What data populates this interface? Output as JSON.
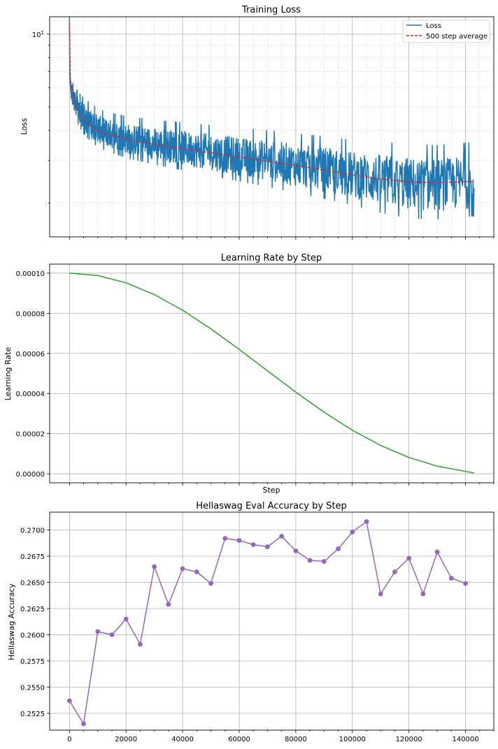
{
  "chart_data": [
    {
      "type": "line",
      "title": "Training Loss",
      "xlabel": "",
      "ylabel": "Loss",
      "yscale": "log",
      "ylim": [
        1.45,
        11.8
      ],
      "xlim": [
        -7000,
        150000
      ],
      "grid": "major and minor",
      "legend_position": "top-right",
      "y_ticklabels": [
        {
          "value": 10,
          "label": "10",
          "sup": "1"
        }
      ],
      "series": [
        {
          "name": "Loss",
          "color": "#1f77b4",
          "style": "solid",
          "noisy": true,
          "x": [
            0,
            100,
            300,
            600,
            1000,
            2000,
            3000,
            5000,
            8000,
            12000,
            20000,
            30000,
            40000,
            50000,
            60000,
            70000,
            80000,
            90000,
            100000,
            110000,
            120000,
            130000,
            143000
          ],
          "y": [
            11.5,
            6.9,
            6.3,
            5.9,
            5.6,
            5.2,
            4.9,
            4.55,
            4.2,
            3.95,
            3.7,
            3.52,
            3.38,
            3.25,
            3.12,
            3.0,
            2.87,
            2.75,
            2.62,
            2.5,
            2.4,
            2.38,
            2.45
          ],
          "band_halfwidth_ln": [
            0.05,
            0.05,
            0.05,
            0.06,
            0.08,
            0.1,
            0.11,
            0.12,
            0.13,
            0.13,
            0.14,
            0.15,
            0.16,
            0.17,
            0.18,
            0.19,
            0.2,
            0.21,
            0.22,
            0.24,
            0.25,
            0.25,
            0.25
          ]
        },
        {
          "name": "500 step average",
          "color": "#d62728",
          "style": "dashed",
          "x": [
            0,
            300,
            600,
            1000,
            2000,
            3000,
            5000,
            8000,
            12000,
            20000,
            30000,
            40000,
            50000,
            60000,
            70000,
            80000,
            90000,
            100000,
            110000,
            120000,
            128000,
            135000,
            143000
          ],
          "y": [
            11.2,
            6.6,
            6.2,
            5.8,
            5.1,
            4.8,
            4.4,
            4.1,
            3.9,
            3.68,
            3.5,
            3.36,
            3.23,
            3.1,
            2.98,
            2.86,
            2.74,
            2.62,
            2.52,
            2.45,
            2.43,
            2.44,
            2.46
          ]
        }
      ]
    },
    {
      "type": "line",
      "title": "Learning Rate by Step",
      "xlabel": "Step",
      "ylabel": "Learning Rate",
      "ylim": [
        -4.5e-06,
        0.0001045
      ],
      "xlim": [
        -7000,
        150000
      ],
      "grid": "major",
      "y_ticklabels": [
        "0.00000",
        "0.00002",
        "0.00004",
        "0.00006",
        "0.00008",
        "0.00010"
      ],
      "series": [
        {
          "name": "",
          "color": "#2ca02c",
          "x": [
            0,
            10000,
            20000,
            30000,
            40000,
            50000,
            60000,
            70000,
            80000,
            90000,
            100000,
            110000,
            120000,
            130000,
            143000
          ],
          "y": [
            0.0001,
            9.88e-05,
            9.52e-05,
            8.93e-05,
            8.15e-05,
            7.22e-05,
            6.2e-05,
            5.13e-05,
            4.07e-05,
            3.07e-05,
            2.17e-05,
            1.41e-05,
            8.1e-06,
            3.8e-06,
            4e-07
          ]
        }
      ]
    },
    {
      "type": "line",
      "title": "Hellaswag Eval Accuracy by Step",
      "xlabel": "",
      "ylabel": "Hellaswag Accuracy",
      "ylim": [
        0.2509,
        0.2717
      ],
      "xlim": [
        -7000,
        150000
      ],
      "grid": "major",
      "markers": "circle",
      "x_ticklabels": [
        "0",
        "20000",
        "40000",
        "60000",
        "80000",
        "100000",
        "120000",
        "140000"
      ],
      "y_ticklabels": [
        "0.2525",
        "0.2550",
        "0.2575",
        "0.2600",
        "0.2625",
        "0.2650",
        "0.2675",
        "0.2700"
      ],
      "series": [
        {
          "name": "",
          "color": "#9467bd",
          "x": [
            0,
            5000,
            10000,
            15000,
            20000,
            25000,
            30000,
            35000,
            40000,
            45000,
            50000,
            55000,
            60000,
            65000,
            70000,
            75000,
            80000,
            85000,
            90000,
            95000,
            100000,
            105000,
            110000,
            115000,
            120000,
            125000,
            130000,
            135000,
            140000
          ],
          "y": [
            0.2537,
            0.2515,
            0.2603,
            0.26,
            0.2615,
            0.2591,
            0.2665,
            0.2629,
            0.2663,
            0.266,
            0.2649,
            0.2692,
            0.269,
            0.2686,
            0.2684,
            0.2694,
            0.268,
            0.2671,
            0.267,
            0.2682,
            0.2698,
            0.2708,
            0.2639,
            0.266,
            0.2673,
            0.2639,
            0.2679,
            0.2654,
            0.2649
          ]
        }
      ]
    }
  ]
}
